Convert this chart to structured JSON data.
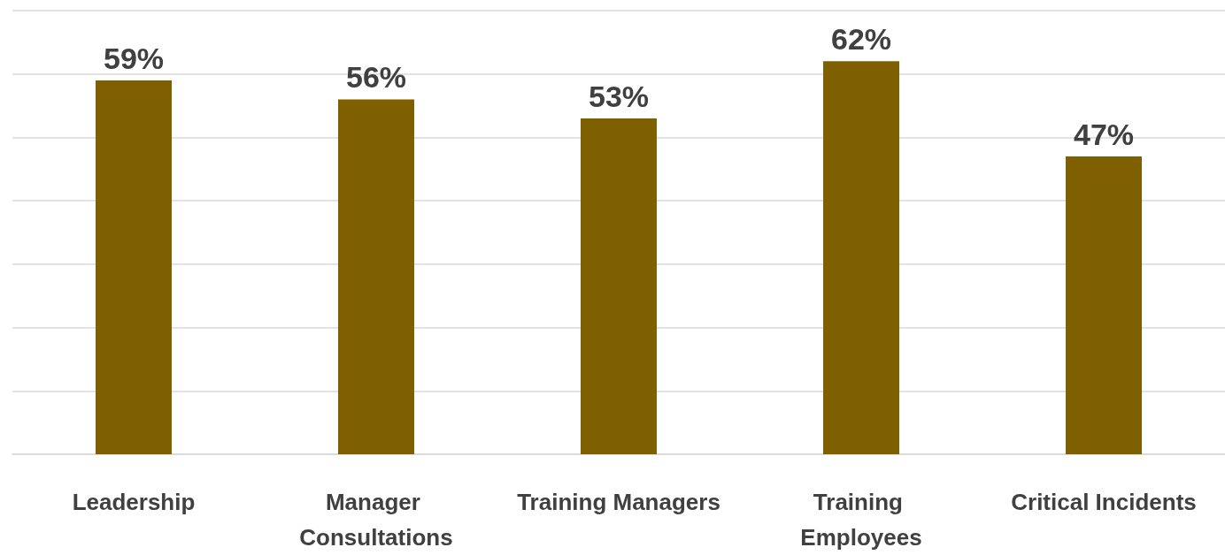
{
  "chart_data": {
    "type": "bar",
    "categories": [
      "Leadership",
      "Manager Consultations",
      "Training Managers",
      "Training Employees",
      "Critical Incidents"
    ],
    "values": [
      59,
      56,
      53,
      62,
      47
    ],
    "color": "#7f6000",
    "value_labels": [
      "59%",
      "56%",
      "53%",
      "62%",
      "47%"
    ],
    "ylim": [
      0,
      70
    ],
    "yticks": [
      0,
      10,
      20,
      30,
      40,
      50,
      60,
      70
    ],
    "grid": "y",
    "tick_labels": "x"
  }
}
